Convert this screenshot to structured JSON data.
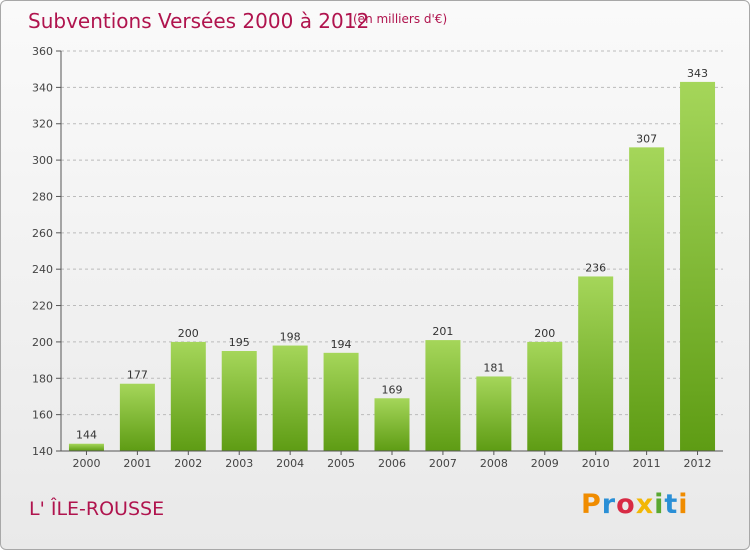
{
  "header": {
    "title": "Subventions Versées 2000 à 2012",
    "unit": "(en milliers d'€)"
  },
  "footer": {
    "commune": "L' ÎLE-ROUSSE",
    "logo_letters": [
      "P",
      "r",
      "o",
      "x",
      "i",
      "t",
      "i"
    ],
    "logo_colors": [
      "#f08c00",
      "#2a8fd6",
      "#d82b45",
      "#f2b705",
      "#5aa832",
      "#2a8fd6",
      "#f08c00"
    ]
  },
  "colors": {
    "title": "#b0144e",
    "bar_light": "#a5d65a",
    "bar_dark": "#5e9c14",
    "axis": "#555555",
    "grid": "#bbbbbb"
  },
  "chart_data": {
    "type": "bar",
    "categories": [
      "2000",
      "2001",
      "2002",
      "2003",
      "2004",
      "2005",
      "2006",
      "2007",
      "2008",
      "2009",
      "2010",
      "2011",
      "2012"
    ],
    "values": [
      144,
      177,
      200,
      195,
      198,
      194,
      169,
      201,
      181,
      200,
      236,
      307,
      343
    ],
    "ylim": [
      140,
      360
    ],
    "yticks": [
      140,
      160,
      180,
      200,
      220,
      240,
      260,
      280,
      300,
      320,
      340,
      360
    ],
    "grid": "horizontal dashed"
  }
}
